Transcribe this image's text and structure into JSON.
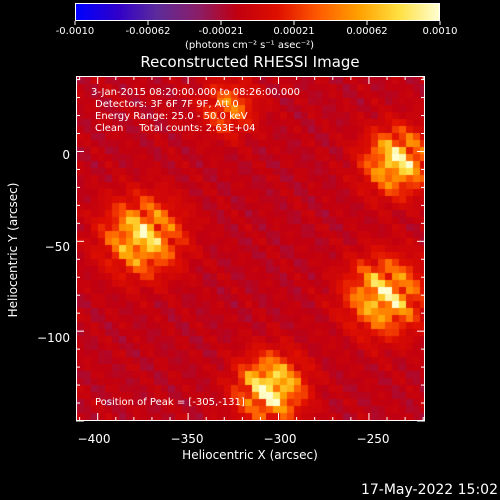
{
  "colorbar": {
    "tick_labels": [
      "-0.0010",
      "-0.00062",
      "-0.00021",
      "0.00021",
      "0.00062",
      "0.0010"
    ],
    "min": -0.001,
    "max": 0.001,
    "unit_label": "(photons cm⁻² s⁻¹ asec⁻²)",
    "colormap": [
      "#0000ff",
      "#3000cc",
      "#5e2c9c",
      "#8a1f6a",
      "#c20010",
      "#e01000",
      "#ff5a00",
      "#ffa000",
      "#ffe040",
      "#ffffd0"
    ]
  },
  "chart_data": {
    "type": "heatmap",
    "title": "Reconstructed RHESSI Image",
    "xlabel": "Heliocentric X (arcsec)",
    "ylabel": "Heliocentric Y (arcsec)",
    "xlim": [
      -412,
      -219
    ],
    "ylim": [
      -150,
      42
    ],
    "x_ticks": [
      -400,
      -350,
      -300,
      -250
    ],
    "y_ticks": [
      0,
      -50,
      -100
    ],
    "x_tick_labels": [
      "−400",
      "−350",
      "−300",
      "−250"
    ],
    "y_tick_labels": [
      "0",
      "−50",
      "−100"
    ],
    "peak": {
      "x": -305,
      "y": -131
    },
    "sources": [
      {
        "x": -376,
        "y": -47,
        "amplitude": 0.00085,
        "sigma": 14
      },
      {
        "x": -305,
        "y": -131,
        "amplitude": 0.001,
        "sigma": 12
      },
      {
        "x": -235,
        "y": -5,
        "amplitude": 0.0009,
        "sigma": 12
      },
      {
        "x": -242,
        "y": -80,
        "amplitude": 0.00085,
        "sigma": 14
      },
      {
        "x": -328,
        "y": 25,
        "amplitude": 0.0005,
        "sigma": 10
      }
    ],
    "annotations": [
      "3-Jan-2015 08:20:00.000 to 08:26:00.000",
      "Detectors: 3F 6F 7F 9F, Att 0",
      "Energy Range: 25.0 - 50.0 keV",
      "Clean     Total counts: 2.63E+04"
    ],
    "peak_label": "Position of Peak = [-305,-131]"
  },
  "footer": {
    "timestamp": "17-May-2022 15:02"
  }
}
